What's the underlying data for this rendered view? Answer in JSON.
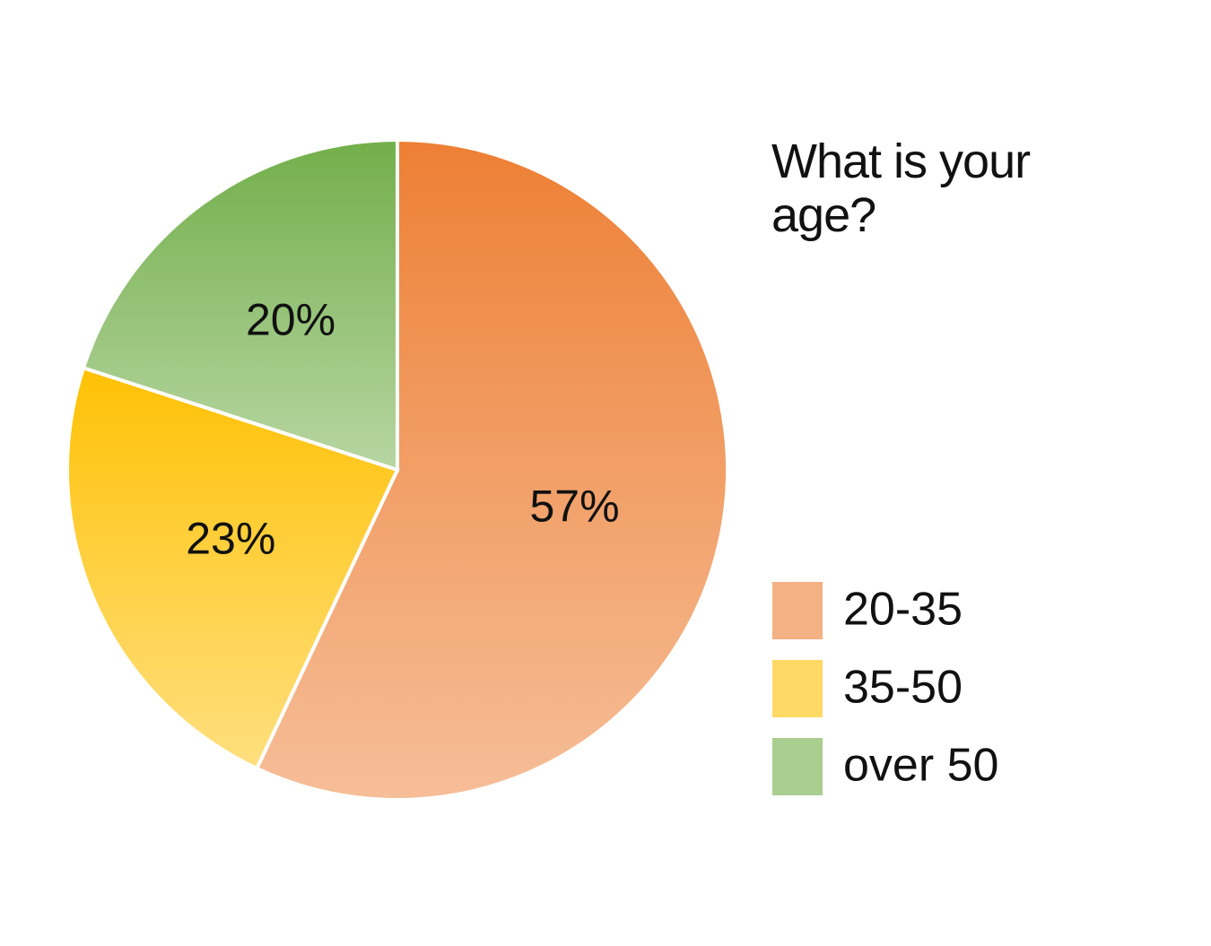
{
  "chart_data": {
    "type": "pie",
    "title": "What is your age?",
    "categories": [
      "20-35",
      "35-50",
      "over 50"
    ],
    "values": [
      57,
      23,
      20
    ],
    "value_labels": [
      "57%",
      "23%",
      "20%"
    ],
    "colors": [
      "#ed7d31",
      "#ffc000",
      "#70ad47"
    ],
    "legend": "right"
  }
}
